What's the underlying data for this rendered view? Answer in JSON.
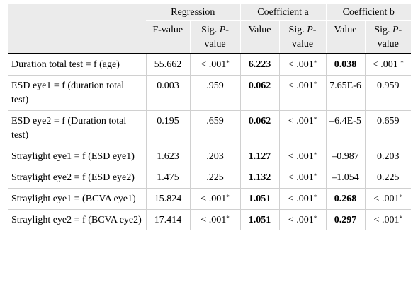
{
  "header": {
    "groups": [
      "Regression",
      "Coefficient a",
      "Coefficient b"
    ],
    "sub": [
      {
        "pre": "F-value",
        "em": "",
        "post": ""
      },
      {
        "pre": "Sig. ",
        "em": "P",
        "post": "-value"
      },
      {
        "pre": "Value",
        "em": "",
        "post": ""
      },
      {
        "pre": "Sig. ",
        "em": "P",
        "post": "-value"
      },
      {
        "pre": "Value",
        "em": "",
        "post": ""
      },
      {
        "pre": "Sig. ",
        "em": "P",
        "post": "-value"
      }
    ]
  },
  "rows": [
    {
      "label": "Duration total test = f (age)",
      "fvalue": "55.662",
      "sig_reg": "< .001",
      "a_value": "6.223",
      "sig_a": "< .001",
      "b_value": "0.038",
      "sig_b": "< .001 "
    },
    {
      "label": "ESD eye1 = f (duration total test)",
      "fvalue": "0.003",
      "sig_reg": ".959",
      "a_value": "0.062",
      "sig_a": "< .001",
      "b_value": "7.65E-6",
      "sig_b": "0.959"
    },
    {
      "label": "ESD eye2 = f (Duration total test)",
      "fvalue": "0.195",
      "sig_reg": ".659",
      "a_value": "0.062",
      "sig_a": "< .001",
      "b_value": "–6.4E-5",
      "sig_b": "0.659"
    },
    {
      "label": "Straylight eye1 = f (ESD eye1)",
      "fvalue": "1.623",
      "sig_reg": ".203",
      "a_value": "1.127",
      "sig_a": "< .001",
      "b_value": "–0.987",
      "sig_b": "0.203"
    },
    {
      "label": "Straylight eye2 = f (ESD eye2)",
      "fvalue": "1.475",
      "sig_reg": ".225",
      "a_value": "1.132",
      "sig_a": "< .001",
      "b_value": "–1.054",
      "sig_b": "0.225"
    },
    {
      "label": "Straylight eye1 = (BCVA eye1)",
      "fvalue": "15.824",
      "sig_reg": "< .001",
      "a_value": "1.051",
      "sig_a": "< .001",
      "b_value": "0.268",
      "sig_b": "< .001"
    },
    {
      "label": "Straylight eye2 = f (BCVA eye2)",
      "fvalue": "17.414",
      "sig_reg": "< .001",
      "a_value": "1.051",
      "sig_a": "< .001",
      "b_value": "0.297",
      "sig_b": "< .001"
    }
  ],
  "star": "*"
}
